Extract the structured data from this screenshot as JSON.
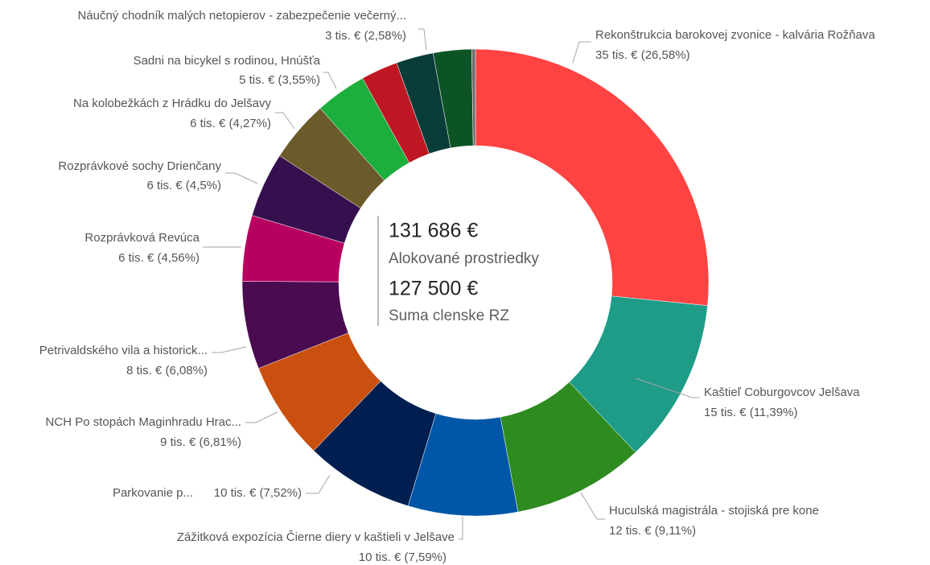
{
  "chart_data": {
    "type": "donut",
    "categories": [
      "Rekonštrukcia barokovej zvonice - kalvária Rožňava",
      "Kaštieľ Coburgovcov Jelšava",
      "Huculská magistrála - stojiská pre kone",
      "Zážitková expozícia Čierne diery v kaštieli v Jelšave",
      "Parkovanie p...",
      "NCH Po stopách Maginhradu Hrac...",
      "Petrivaldského vila a historick...",
      "Rozprávková Revúca",
      "Rozprávkové sochy Drienčany",
      "Na kolobežkách z Hrádku do Jelšavy",
      "Sadni na bicykel s rodinou, Hnúšťa",
      null,
      "Náučný chodník malých netopierov - zabezpečenie večerný...",
      null,
      null
    ],
    "values": [
      26.58,
      11.39,
      9.11,
      7.59,
      7.52,
      6.81,
      6.08,
      4.56,
      4.5,
      4.27,
      3.55,
      2.55,
      2.58,
      2.65,
      0.26
    ],
    "value_labels": [
      "35 tis. € (26,58%)",
      "15 tis. € (11,39%)",
      "12 tis. € (9,11%)",
      "10 tis. € (7,59%)",
      "10 tis. € (7,52%)",
      "9 tis. € (6,81%)",
      "8 tis. € (6,08%)",
      "6 tis. € (4,56%)",
      "6 tis. € (4,5%)",
      "6 tis. € (4,27%)",
      "5 tis. € (3,55%)",
      null,
      "3 tis. € (2,58%)",
      null,
      null
    ],
    "colors": [
      "#FF4343",
      "#1E9C87",
      "#2E8B1F",
      "#0057A8",
      "#001E50",
      "#C9500E",
      "#4B0B50",
      "#B8005E",
      "#36104E",
      "#6B5A2A",
      "#1DAF3E",
      "#BE1622",
      "#0A3D3A",
      "#0C5426",
      "#6F6F6F"
    ],
    "kpis": [
      {
        "amount": "131 686 €",
        "caption": "Alokované prostriedky"
      },
      {
        "amount": "127 500 €",
        "caption": "Suma clenske RZ"
      }
    ]
  }
}
